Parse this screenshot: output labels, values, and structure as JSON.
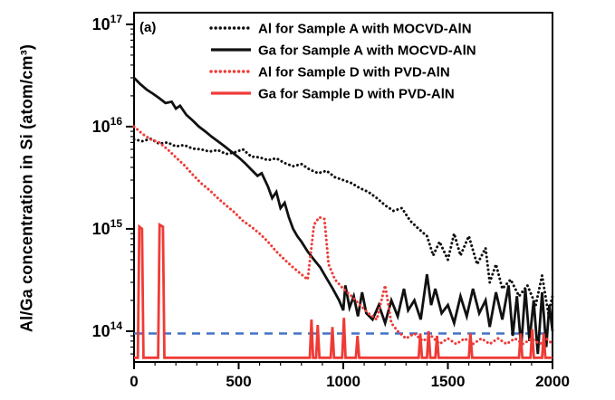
{
  "figure": {
    "panel_label": "(a)"
  },
  "chart_data": {
    "type": "line",
    "title": "",
    "xlabel": "",
    "ylabel": "Al/Ga concentration in Si (atom/cm³)",
    "xlim": [
      0,
      2000
    ],
    "x_ticks": [
      0,
      500,
      1000,
      1500,
      2000
    ],
    "x_minor_tick_step": 100,
    "ylim": [
      50000000000000.0,
      1.3e+17
    ],
    "y_scale": "log",
    "y_ticks_exponents": [
      14,
      15,
      16,
      17
    ],
    "grid": false,
    "legend_position": "top-inside",
    "reference_line": {
      "y": 95000000000000.0,
      "color": "#4472c4",
      "style": "dashed"
    },
    "series": [
      {
        "name": "Al for Sample A with MOCVD-AlN",
        "color": "#111111",
        "style": "dotted",
        "points": [
          [
            0,
            7500000000000000.0
          ],
          [
            40,
            7200000000000000.0
          ],
          [
            80,
            7600000000000000.0
          ],
          [
            120,
            6800000000000000.0
          ],
          [
            160,
            7000000000000000.0
          ],
          [
            200,
            6400000000000000.0
          ],
          [
            240,
            6600000000000000.0
          ],
          [
            280,
            6100000000000000.0
          ],
          [
            320,
            6000000000000000.0
          ],
          [
            360,
            5700000000000000.0
          ],
          [
            400,
            5900000000000000.0
          ],
          [
            440,
            5400000000000000.0
          ],
          [
            480,
            5600000000000000.0
          ],
          [
            520,
            6000000000000000.0
          ],
          [
            560,
            5100000000000000.0
          ],
          [
            600,
            5000000000000000.0
          ],
          [
            640,
            4700000000000000.0
          ],
          [
            680,
            4900000000000000.0
          ],
          [
            720,
            4400000000000000.0
          ],
          [
            760,
            4100000000000000.0
          ],
          [
            800,
            4300000000000000.0
          ],
          [
            840,
            3800000000000000.0
          ],
          [
            880,
            3500000000000000.0
          ],
          [
            920,
            3700000000000000.0
          ],
          [
            960,
            3200000000000000.0
          ],
          [
            1000,
            3000000000000000.0
          ],
          [
            1040,
            2800000000000000.0
          ],
          [
            1080,
            2500000000000000.0
          ],
          [
            1120,
            2300000000000000.0
          ],
          [
            1160,
            2000000000000000.0
          ],
          [
            1200,
            1700000000000000.0
          ],
          [
            1240,
            1500000000000000.0
          ],
          [
            1280,
            1600000000000000.0
          ],
          [
            1320,
            1200000000000000.0
          ],
          [
            1360,
            1000000000000000.0
          ],
          [
            1400,
            850000000000000.0
          ],
          [
            1430,
            550000000000000.0
          ],
          [
            1460,
            750000000000000.0
          ],
          [
            1500,
            500000000000000.0
          ],
          [
            1530,
            900000000000000.0
          ],
          [
            1560,
            550000000000000.0
          ],
          [
            1600,
            850000000000000.0
          ],
          [
            1640,
            450000000000000.0
          ],
          [
            1680,
            650000000000000.0
          ],
          [
            1700,
            300000000000000.0
          ],
          [
            1730,
            450000000000000.0
          ],
          [
            1760,
            260000000000000.0
          ],
          [
            1800,
            320000000000000.0
          ],
          [
            1840,
            220000000000000.0
          ],
          [
            1880,
            280000000000000.0
          ],
          [
            1920,
            180000000000000.0
          ],
          [
            1950,
            350000000000000.0
          ],
          [
            1980,
            150000000000000.0
          ],
          [
            2000,
            220000000000000.0
          ]
        ]
      },
      {
        "name": "Ga for Sample A with MOCVD-AlN",
        "color": "#111111",
        "style": "solid",
        "points": [
          [
            0,
            3e+16
          ],
          [
            30,
            2.6e+16
          ],
          [
            60,
            2.3e+16
          ],
          [
            90,
            2.1e+16
          ],
          [
            120,
            1.9e+16
          ],
          [
            150,
            1.7e+16
          ],
          [
            180,
            1.75e+16
          ],
          [
            200,
            1.5e+16
          ],
          [
            220,
            1.6e+16
          ],
          [
            250,
            1.3e+16
          ],
          [
            280,
            1.15e+16
          ],
          [
            310,
            1e+16
          ],
          [
            340,
            9000000000000000.0
          ],
          [
            370,
            8000000000000000.0
          ],
          [
            400,
            7200000000000000.0
          ],
          [
            430,
            6500000000000000.0
          ],
          [
            460,
            5800000000000000.0
          ],
          [
            500,
            5000000000000000.0
          ],
          [
            530,
            4400000000000000.0
          ],
          [
            560,
            3800000000000000.0
          ],
          [
            590,
            3300000000000000.0
          ],
          [
            610,
            3500000000000000.0
          ],
          [
            640,
            2600000000000000.0
          ],
          [
            660,
            2000000000000000.0
          ],
          [
            680,
            2300000000000000.0
          ],
          [
            700,
            1600000000000000.0
          ],
          [
            720,
            1800000000000000.0
          ],
          [
            740,
            1300000000000000.0
          ],
          [
            760,
            1000000000000000.0
          ],
          [
            780,
            850000000000000.0
          ],
          [
            800,
            750000000000000.0
          ],
          [
            830,
            600000000000000.0
          ],
          [
            860,
            500000000000000.0
          ],
          [
            890,
            420000000000000.0
          ],
          [
            920,
            330000000000000.0
          ],
          [
            950,
            260000000000000.0
          ],
          [
            980,
            200000000000000.0
          ],
          [
            1000,
            160000000000000.0
          ],
          [
            1010,
            280000000000000.0
          ],
          [
            1030,
            170000000000000.0
          ],
          [
            1050,
            220000000000000.0
          ],
          [
            1070,
            140000000000000.0
          ],
          [
            1090,
            240000000000000.0
          ],
          [
            1110,
            150000000000000.0
          ],
          [
            1140,
            130000000000000.0
          ],
          [
            1170,
            180000000000000.0
          ],
          [
            1200,
            120000000000000.0
          ],
          [
            1230,
            200000000000000.0
          ],
          [
            1260,
            140000000000000.0
          ],
          [
            1290,
            260000000000000.0
          ],
          [
            1310,
            160000000000000.0
          ],
          [
            1340,
            200000000000000.0
          ],
          [
            1370,
            130000000000000.0
          ],
          [
            1400,
            360000000000000.0
          ],
          [
            1420,
            180000000000000.0
          ],
          [
            1440,
            260000000000000.0
          ],
          [
            1470,
            150000000000000.0
          ],
          [
            1500,
            180000000000000.0
          ],
          [
            1530,
            120000000000000.0
          ],
          [
            1560,
            220000000000000.0
          ],
          [
            1590,
            140000000000000.0
          ],
          [
            1620,
            260000000000000.0
          ],
          [
            1650,
            150000000000000.0
          ],
          [
            1680,
            200000000000000.0
          ],
          [
            1700,
            110000000000000.0
          ],
          [
            1730,
            240000000000000.0
          ],
          [
            1760,
            130000000000000.0
          ],
          [
            1790,
            280000000000000.0
          ],
          [
            1810,
            90000000000000.0
          ],
          [
            1830,
            220000000000000.0
          ],
          [
            1850,
            70000000000000.0
          ],
          [
            1870,
            260000000000000.0
          ],
          [
            1890,
            80000000000000.0
          ],
          [
            1910,
            200000000000000.0
          ],
          [
            1930,
            60000000000000.0
          ],
          [
            1950,
            240000000000000.0
          ],
          [
            1970,
            70000000000000.0
          ],
          [
            1985,
            180000000000000.0
          ],
          [
            2000,
            100000000000000.0
          ]
        ]
      },
      {
        "name": "Al for Sample D with PVD-AlN",
        "color": "#ef3b36",
        "style": "dotted",
        "points": [
          [
            0,
            1e+16
          ],
          [
            40,
            8500000000000000.0
          ],
          [
            80,
            7500000000000000.0
          ],
          [
            120,
            7000000000000000.0
          ],
          [
            160,
            6000000000000000.0
          ],
          [
            200,
            5000000000000000.0
          ],
          [
            240,
            4200000000000000.0
          ],
          [
            280,
            3400000000000000.0
          ],
          [
            320,
            2800000000000000.0
          ],
          [
            360,
            2400000000000000.0
          ],
          [
            400,
            2000000000000000.0
          ],
          [
            440,
            1700000000000000.0
          ],
          [
            480,
            1450000000000000.0
          ],
          [
            520,
            1200000000000000.0
          ],
          [
            560,
            1050000000000000.0
          ],
          [
            600,
            900000000000000.0
          ],
          [
            640,
            750000000000000.0
          ],
          [
            680,
            600000000000000.0
          ],
          [
            720,
            500000000000000.0
          ],
          [
            760,
            420000000000000.0
          ],
          [
            800,
            360000000000000.0
          ],
          [
            830,
            320000000000000.0
          ],
          [
            860,
            1100000000000000.0
          ],
          [
            885,
            1300000000000000.0
          ],
          [
            910,
            1250000000000000.0
          ],
          [
            930,
            450000000000000.0
          ],
          [
            960,
            320000000000000.0
          ],
          [
            1000,
            260000000000000.0
          ],
          [
            1040,
            220000000000000.0
          ],
          [
            1080,
            180000000000000.0
          ],
          [
            1120,
            150000000000000.0
          ],
          [
            1160,
            130000000000000.0
          ],
          [
            1200,
            280000000000000.0
          ],
          [
            1230,
            120000000000000.0
          ],
          [
            1260,
            100000000000000.0
          ],
          [
            1300,
            85000000000000.0
          ],
          [
            1340,
            95000000000000.0
          ],
          [
            1380,
            80000000000000.0
          ],
          [
            1420,
            90000000000000.0
          ],
          [
            1460,
            75000000000000.0
          ],
          [
            1500,
            85000000000000.0
          ],
          [
            1540,
            75000000000000.0
          ],
          [
            1580,
            85000000000000.0
          ],
          [
            1620,
            75000000000000.0
          ],
          [
            1660,
            85000000000000.0
          ],
          [
            1700,
            75000000000000.0
          ],
          [
            1740,
            85000000000000.0
          ],
          [
            1780,
            75000000000000.0
          ],
          [
            1820,
            85000000000000.0
          ],
          [
            1860,
            75000000000000.0
          ],
          [
            1900,
            85000000000000.0
          ],
          [
            1940,
            75000000000000.0
          ],
          [
            1970,
            85000000000000.0
          ],
          [
            2000,
            75000000000000.0
          ]
        ]
      },
      {
        "name": "Ga for Sample D with PVD-AlN",
        "color": "#ef3b36",
        "style": "solid",
        "points": [
          [
            0,
            55000000000000.0
          ],
          [
            18,
            55000000000000.0
          ],
          [
            25,
            1050000000000000.0
          ],
          [
            38,
            1000000000000000.0
          ],
          [
            45,
            55000000000000.0
          ],
          [
            115,
            55000000000000.0
          ],
          [
            122,
            1100000000000000.0
          ],
          [
            138,
            1050000000000000.0
          ],
          [
            145,
            55000000000000.0
          ],
          [
            300,
            55000000000000.0
          ],
          [
            500,
            55000000000000.0
          ],
          [
            700,
            55000000000000.0
          ],
          [
            840,
            55000000000000.0
          ],
          [
            848,
            130000000000000.0
          ],
          [
            856,
            55000000000000.0
          ],
          [
            870,
            55000000000000.0
          ],
          [
            878,
            115000000000000.0
          ],
          [
            886,
            55000000000000.0
          ],
          [
            940,
            55000000000000.0
          ],
          [
            948,
            110000000000000.0
          ],
          [
            956,
            55000000000000.0
          ],
          [
            995,
            55000000000000.0
          ],
          [
            1003,
            135000000000000.0
          ],
          [
            1011,
            55000000000000.0
          ],
          [
            1060,
            55000000000000.0
          ],
          [
            1068,
            90000000000000.0
          ],
          [
            1076,
            55000000000000.0
          ],
          [
            1200,
            55000000000000.0
          ],
          [
            1360,
            55000000000000.0
          ],
          [
            1368,
            95000000000000.0
          ],
          [
            1376,
            55000000000000.0
          ],
          [
            1400,
            55000000000000.0
          ],
          [
            1408,
            100000000000000.0
          ],
          [
            1416,
            55000000000000.0
          ],
          [
            1440,
            55000000000000.0
          ],
          [
            1448,
            90000000000000.0
          ],
          [
            1456,
            55000000000000.0
          ],
          [
            1600,
            55000000000000.0
          ],
          [
            1608,
            95000000000000.0
          ],
          [
            1616,
            55000000000000.0
          ],
          [
            1840,
            55000000000000.0
          ],
          [
            1848,
            95000000000000.0
          ],
          [
            1856,
            55000000000000.0
          ],
          [
            1895,
            55000000000000.0
          ],
          [
            1903,
            105000000000000.0
          ],
          [
            1911,
            55000000000000.0
          ],
          [
            1950,
            55000000000000.0
          ],
          [
            1958,
            95000000000000.0
          ],
          [
            1966,
            55000000000000.0
          ],
          [
            2000,
            55000000000000.0
          ]
        ]
      }
    ]
  }
}
